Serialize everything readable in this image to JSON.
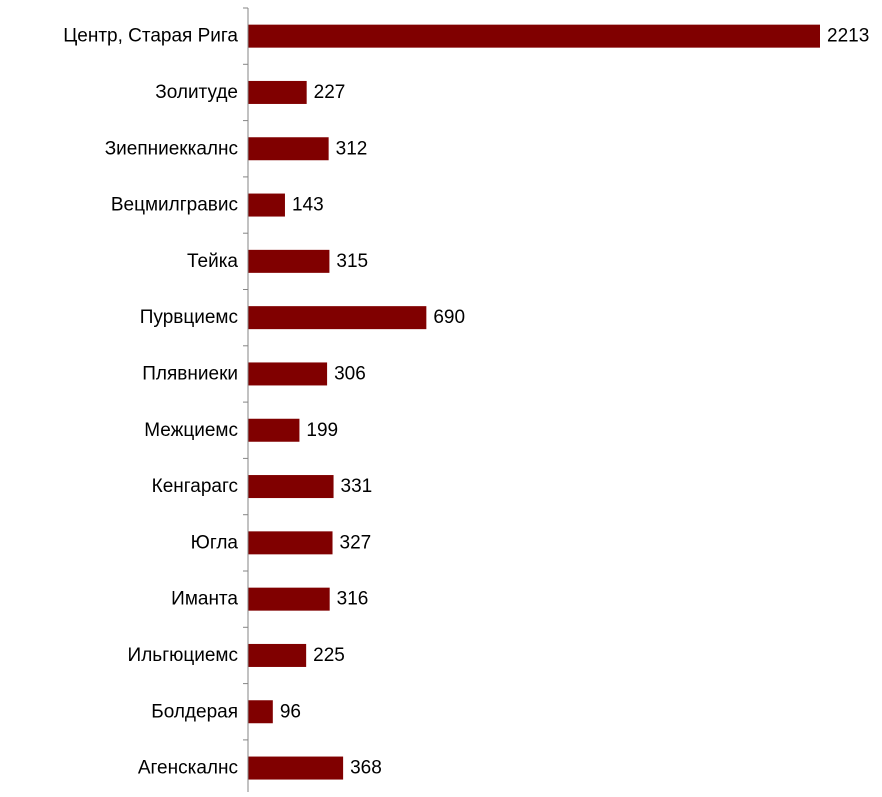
{
  "chart_data": {
    "type": "bar",
    "orientation": "horizontal",
    "categories": [
      "Центр, Старая Рига",
      "Золитуде",
      "Зиепниеккалнс",
      "Вецмилгравис",
      "Тейка",
      "Пурвциемс",
      "Плявниеки",
      "Межциемс",
      "Кенгарагс",
      "Югла",
      "Иманта",
      "Ильгюциемс",
      "Болдерая",
      "Агенскалнс"
    ],
    "values": [
      2213,
      227,
      312,
      143,
      315,
      690,
      306,
      199,
      331,
      327,
      316,
      225,
      96,
      368
    ],
    "value_labels": [
      "2213",
      "227",
      "312",
      "143",
      "315",
      "690",
      "306",
      "199",
      "331",
      "327",
      "316",
      "225",
      "96",
      "368"
    ],
    "xlim": [
      0,
      2213
    ],
    "bar_color": "#800000",
    "axis_color": "#868686",
    "grid": false,
    "legend": "none"
  }
}
